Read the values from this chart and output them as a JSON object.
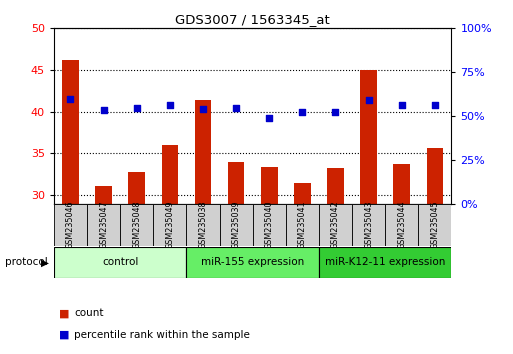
{
  "title": "GDS3007 / 1563345_at",
  "samples": [
    "GSM235046",
    "GSM235047",
    "GSM235048",
    "GSM235049",
    "GSM235038",
    "GSM235039",
    "GSM235040",
    "GSM235041",
    "GSM235042",
    "GSM235043",
    "GSM235044",
    "GSM235045"
  ],
  "bar_values": [
    46.2,
    31.1,
    32.8,
    36.0,
    41.4,
    34.0,
    33.4,
    31.5,
    33.3,
    45.0,
    33.7,
    35.7
  ],
  "dot_values_left": [
    41.5,
    40.2,
    40.5,
    40.8,
    40.3,
    40.4,
    39.3,
    40.0,
    40.0,
    41.4,
    40.8,
    40.8
  ],
  "bar_color": "#cc2200",
  "dot_color": "#0000cc",
  "ylim_left": [
    29,
    50
  ],
  "ylim_right": [
    0,
    100
  ],
  "yticks_left": [
    30,
    35,
    40,
    45,
    50
  ],
  "yticks_right": [
    0,
    25,
    50,
    75,
    100
  ],
  "ytick_labels_right": [
    "0%",
    "25%",
    "50%",
    "75%",
    "100%"
  ],
  "groups": [
    {
      "label": "control",
      "start": 0,
      "end": 4,
      "color": "#ccffcc"
    },
    {
      "label": "miR-155 expression",
      "start": 4,
      "end": 8,
      "color": "#66ee66"
    },
    {
      "label": "miR-K12-11 expression",
      "start": 8,
      "end": 12,
      "color": "#33cc33"
    }
  ],
  "protocol_label": "protocol",
  "legend_count": "count",
  "legend_pct": "percentile rank within the sample",
  "bar_width": 0.5,
  "sample_box_color": "#d0d0d0"
}
